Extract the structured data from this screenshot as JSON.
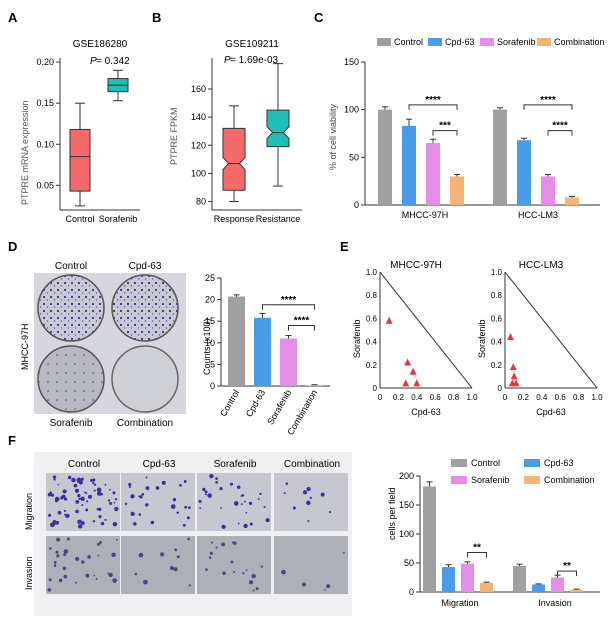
{
  "panels": {
    "A": {
      "letter": "A",
      "title": "GSE186280",
      "pvalue_label": "P",
      "pvalue": " = 0.342",
      "ylabel": "PTPRE mRNA expression",
      "yticks": [
        "0.05",
        "0.10",
        "0.15",
        "0.20"
      ],
      "categories": [
        "Control",
        "Sorafenib"
      ],
      "boxes": [
        {
          "name": "Control",
          "min": 0.025,
          "q1": 0.043,
          "median": 0.085,
          "q3": 0.118,
          "max": 0.15,
          "color": "#f46a6a"
        },
        {
          "name": "Sorafenib",
          "min": 0.153,
          "q1": 0.164,
          "median": 0.172,
          "q3": 0.18,
          "max": 0.19,
          "color": "#1fbfb8"
        }
      ]
    },
    "B": {
      "letter": "B",
      "title": "GSE109211",
      "pvalue_label": "P",
      "pvalue": " = 1.69e-03",
      "ylabel": "PTPRE FPKM",
      "yticks": [
        "80",
        "100",
        "120",
        "140",
        "160"
      ],
      "categories": [
        "Response",
        "Resistance"
      ],
      "boxes": [
        {
          "name": "Response",
          "min": 80,
          "q1": 88,
          "median": 107,
          "q3": 132,
          "max": 148,
          "color": "#f46a6a"
        },
        {
          "name": "Resistance",
          "min": 91,
          "q1": 119,
          "median": 129,
          "q3": 145,
          "max": 178,
          "color": "#1fbfb8"
        }
      ]
    },
    "C": {
      "letter": "C",
      "legend": [
        "Control",
        "Cpd-63",
        "Sorafenib",
        "Combination"
      ],
      "ylabel": "% of cell viability",
      "yticks": [
        "0",
        "50",
        "100",
        "150"
      ],
      "groups": [
        "MHCC-97H",
        "HCC-LM3"
      ],
      "values": [
        [
          100,
          83,
          65,
          30
        ],
        [
          100,
          68,
          30,
          8
        ]
      ],
      "errors": [
        [
          3,
          7,
          4,
          2
        ],
        [
          2,
          2,
          2,
          1
        ]
      ],
      "sig": [
        [
          "****",
          "***"
        ],
        [
          "****",
          "****"
        ]
      ]
    },
    "D": {
      "letter": "D",
      "plate_labels": [
        "Control",
        "Cpd-63",
        "Sorafenib",
        "Combination"
      ],
      "row_label": "MHCC-97H",
      "ylabel": "Counts (x100)",
      "yticks": [
        "0",
        "5",
        "10",
        "15",
        "20",
        "25"
      ],
      "categories": [
        "Control",
        "Cpd-63",
        "Sorafenib",
        "Combination"
      ],
      "values": [
        20.7,
        15.8,
        11,
        0.2
      ],
      "errors": [
        0.4,
        1.0,
        0.7,
        0.1
      ],
      "sig": [
        "****",
        "****"
      ]
    },
    "E": {
      "letter": "E",
      "plots": [
        {
          "title": "MHCC-97H",
          "ylabel": "Sorafenib",
          "xlabel": "Cpd-63",
          "ticks": [
            "0",
            "0.2",
            "0.4",
            "0.6",
            "0.8",
            "1.0"
          ],
          "points": [
            [
              0.1,
              0.58
            ],
            [
              0.28,
              0.04
            ],
            [
              0.3,
              0.22
            ],
            [
              0.36,
              0.14
            ],
            [
              0.4,
              0.04
            ]
          ]
        },
        {
          "title": "HCC-LM3",
          "ylabel": "Sorafenib",
          "xlabel": "Cpd-63",
          "ticks": [
            "0",
            "0.2",
            "0.4",
            "0.6",
            "0.8",
            "1.0"
          ],
          "points": [
            [
              0.06,
              0.44
            ],
            [
              0.08,
              0.04
            ],
            [
              0.09,
              0.18
            ],
            [
              0.1,
              0.1
            ],
            [
              0.12,
              0.04
            ]
          ]
        }
      ]
    },
    "F": {
      "letter": "F",
      "col_labels": [
        "Control",
        "Cpd-63",
        "Sorafenib",
        "Combination"
      ],
      "row_labels": [
        "Migration",
        "Invasion"
      ],
      "legend": [
        "Control",
        "Cpd-63",
        "Sorafenib",
        "Combination"
      ],
      "ylabel": "cells per field",
      "yticks": [
        "0",
        "50",
        "100",
        "150",
        "200"
      ],
      "groups": [
        "Migration",
        "Invasion"
      ],
      "values": [
        [
          182,
          43,
          49,
          16
        ],
        [
          45,
          13,
          25,
          4
        ]
      ],
      "errors": [
        [
          8,
          4,
          3,
          1
        ],
        [
          3,
          1,
          4,
          1
        ]
      ],
      "sig": [
        "**",
        "**"
      ]
    }
  },
  "colors": {
    "control": "#a0a0a0",
    "cpd63": "#4a9be8",
    "sorafenib": "#e58ee8",
    "combination": "#f7b373",
    "marker": "#e8363a"
  }
}
